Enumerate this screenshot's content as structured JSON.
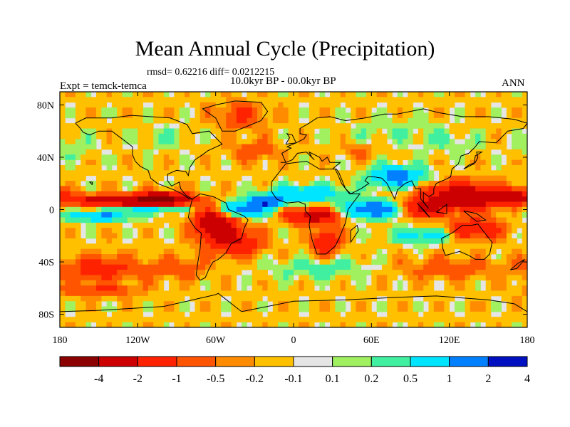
{
  "title": "Mean Annual Cycle (Precipitation)",
  "stats": "rmsd= 0.62216 diff= 0.0212215",
  "expt": "Expt = temck-temca",
  "period": "10.0kyr BP - 00.0kyr BP",
  "season": "ANN",
  "colors": {
    "land_gray": "#e5e5e5",
    "outline": "#000000",
    "bins": [
      "#8b0000",
      "#cc0000",
      "#ff2200",
      "#ff5500",
      "#ff8c00",
      "#ffc000",
      "#e5e5e5",
      "#a0f060",
      "#40f0a0",
      "#00e5ff",
      "#0080ff",
      "#0010c0"
    ]
  },
  "axes": {
    "x_ticks": [
      "180",
      "120W",
      "60W",
      "0",
      "60E",
      "120E",
      "180"
    ],
    "y_ticks": [
      "80N",
      "40N",
      "0",
      "40S",
      "80S"
    ]
  },
  "colorbar": {
    "labels": [
      "-4",
      "-2",
      "-1",
      "-0.5",
      "-0.2",
      "-0.1",
      "0.1",
      "0.2",
      "0.5",
      "1",
      "2",
      "4"
    ]
  },
  "field": {
    "lon_range": [
      -180,
      180
    ],
    "lat_range": [
      -90,
      90
    ],
    "features": [
      {
        "lon": -135,
        "lat": 7,
        "rx": 35,
        "ry": 4,
        "v": -2.5
      },
      {
        "lon": -100,
        "lat": 8,
        "rx": 20,
        "ry": 5,
        "v": -3
      },
      {
        "lon": -150,
        "lat": -5,
        "rx": 25,
        "ry": 4,
        "v": 1.5
      },
      {
        "lon": -110,
        "lat": 0,
        "rx": 25,
        "ry": 3,
        "v": 1.2
      },
      {
        "lon": -40,
        "lat": 0,
        "rx": 20,
        "ry": 6,
        "v": 2.0
      },
      {
        "lon": -60,
        "lat": -10,
        "rx": 15,
        "ry": 12,
        "v": -2.5
      },
      {
        "lon": -45,
        "lat": -25,
        "rx": 20,
        "ry": 10,
        "v": -1.5
      },
      {
        "lon": -20,
        "lat": 6,
        "rx": 12,
        "ry": 4,
        "v": 3
      },
      {
        "lon": 15,
        "lat": -5,
        "rx": 20,
        "ry": 6,
        "v": -2.0
      },
      {
        "lon": 25,
        "lat": -25,
        "rx": 10,
        "ry": 10,
        "v": -1.5
      },
      {
        "lon": 10,
        "lat": 12,
        "rx": 30,
        "ry": 6,
        "v": 1.5
      },
      {
        "lon": 60,
        "lat": 0,
        "rx": 20,
        "ry": 6,
        "v": 2.5
      },
      {
        "lon": 80,
        "lat": 25,
        "rx": 20,
        "ry": 8,
        "v": 2.0
      },
      {
        "lon": 130,
        "lat": 10,
        "rx": 30,
        "ry": 10,
        "v": -2.5
      },
      {
        "lon": 100,
        "lat": 0,
        "rx": 12,
        "ry": 6,
        "v": -2.0
      },
      {
        "lon": 165,
        "lat": 10,
        "rx": 20,
        "ry": 5,
        "v": -2.0
      },
      {
        "lon": 140,
        "lat": -15,
        "rx": 20,
        "ry": 8,
        "v": -1.5
      },
      {
        "lon": 100,
        "lat": -20,
        "rx": 25,
        "ry": 6,
        "v": 1.0
      },
      {
        "lon": -150,
        "lat": -45,
        "rx": 30,
        "ry": 10,
        "v": -1.0
      },
      {
        "lon": -90,
        "lat": -45,
        "rx": 25,
        "ry": 8,
        "v": -0.6
      },
      {
        "lon": 20,
        "lat": -45,
        "rx": 40,
        "ry": 8,
        "v": 0.5
      },
      {
        "lon": 120,
        "lat": -45,
        "rx": 40,
        "ry": 8,
        "v": -0.6
      },
      {
        "lon": -150,
        "lat": -62,
        "rx": 30,
        "ry": 5,
        "v": -0.8
      },
      {
        "lon": -40,
        "lat": 72,
        "rx": 20,
        "ry": 10,
        "v": -0.8
      },
      {
        "lon": 80,
        "lat": 60,
        "rx": 40,
        "ry": 10,
        "v": 0.3
      },
      {
        "lon": 120,
        "lat": 50,
        "rx": 25,
        "ry": 8,
        "v": 0.3
      },
      {
        "lon": -100,
        "lat": 55,
        "rx": 25,
        "ry": 10,
        "v": 0.3
      },
      {
        "lon": -30,
        "lat": 45,
        "rx": 20,
        "ry": 8,
        "v": -0.6
      },
      {
        "lon": 50,
        "lat": 45,
        "rx": 15,
        "ry": 6,
        "v": -0.4
      },
      {
        "lon": -170,
        "lat": 48,
        "rx": 20,
        "ry": 10,
        "v": 0.3
      }
    ],
    "coast": [
      [
        [
          -168,
          66
        ],
        [
          -160,
          70
        ],
        [
          -140,
          70
        ],
        [
          -125,
          72
        ],
        [
          -95,
          70
        ],
        [
          -82,
          65
        ],
        [
          -78,
          58
        ],
        [
          -65,
          60
        ],
        [
          -60,
          55
        ],
        [
          -55,
          50
        ],
        [
          -66,
          45
        ],
        [
          -70,
          42
        ],
        [
          -76,
          38
        ],
        [
          -80,
          32
        ],
        [
          -81,
          26
        ],
        [
          -83,
          29
        ],
        [
          -90,
          30
        ],
        [
          -97,
          27
        ],
        [
          -97,
          22
        ],
        [
          -94,
          18
        ],
        [
          -88,
          21
        ],
        [
          -87,
          16
        ],
        [
          -83,
          11
        ],
        [
          -78,
          8
        ],
        [
          -80,
          8
        ],
        [
          -86,
          12
        ],
        [
          -92,
          15
        ],
        [
          -105,
          20
        ],
        [
          -110,
          24
        ],
        [
          -112,
          30
        ],
        [
          -118,
          33
        ],
        [
          -122,
          37
        ],
        [
          -124,
          42
        ],
        [
          -124,
          48
        ],
        [
          -132,
          54
        ],
        [
          -140,
          60
        ],
        [
          -150,
          60
        ],
        [
          -157,
          57
        ],
        [
          -162,
          59
        ],
        [
          -165,
          63
        ],
        [
          -168,
          66
        ]
      ],
      [
        [
          -78,
          8
        ],
        [
          -72,
          12
        ],
        [
          -62,
          10
        ],
        [
          -52,
          5
        ],
        [
          -50,
          0
        ],
        [
          -45,
          -2
        ],
        [
          -38,
          -5
        ],
        [
          -35,
          -8
        ],
        [
          -38,
          -14
        ],
        [
          -40,
          -22
        ],
        [
          -48,
          -26
        ],
        [
          -52,
          -33
        ],
        [
          -58,
          -38
        ],
        [
          -62,
          -40
        ],
        [
          -65,
          -45
        ],
        [
          -68,
          -52
        ],
        [
          -72,
          -54
        ],
        [
          -75,
          -50
        ],
        [
          -74,
          -42
        ],
        [
          -72,
          -30
        ],
        [
          -71,
          -18
        ],
        [
          -76,
          -14
        ],
        [
          -81,
          -6
        ],
        [
          -80,
          0
        ],
        [
          -78,
          8
        ]
      ],
      [
        [
          -55,
          60
        ],
        [
          -45,
          60
        ],
        [
          -25,
          68
        ],
        [
          -20,
          75
        ],
        [
          -25,
          82
        ],
        [
          -45,
          83
        ],
        [
          -60,
          80
        ],
        [
          -70,
          77
        ],
        [
          -60,
          70
        ],
        [
          -55,
          60
        ]
      ],
      [
        [
          -10,
          36
        ],
        [
          -6,
          36
        ],
        [
          -9,
          43
        ],
        [
          -2,
          47
        ],
        [
          -5,
          48
        ],
        [
          2,
          51
        ],
        [
          8,
          54
        ],
        [
          10,
          57
        ],
        [
          5,
          58
        ],
        [
          5,
          62
        ],
        [
          12,
          66
        ],
        [
          18,
          70
        ],
        [
          28,
          71
        ],
        [
          40,
          68
        ],
        [
          55,
          70
        ],
        [
          70,
          73
        ],
        [
          80,
          73
        ],
        [
          100,
          77
        ],
        [
          112,
          74
        ],
        [
          130,
          71
        ],
        [
          150,
          71
        ],
        [
          170,
          69
        ],
        [
          180,
          66
        ],
        [
          177,
          62
        ],
        [
          165,
          60
        ],
        [
          160,
          55
        ],
        [
          156,
          51
        ],
        [
          143,
          52
        ],
        [
          140,
          48
        ],
        [
          135,
          43
        ],
        [
          129,
          41
        ],
        [
          127,
          35
        ],
        [
          122,
          31
        ],
        [
          121,
          25
        ],
        [
          117,
          23
        ],
        [
          110,
          20
        ],
        [
          108,
          16
        ],
        [
          108,
          12
        ],
        [
          104,
          10
        ],
        [
          100,
          13
        ],
        [
          100,
          6
        ],
        [
          104,
          1
        ],
        [
          98,
          8
        ],
        [
          98,
          16
        ],
        [
          94,
          16
        ],
        [
          91,
          22
        ],
        [
          86,
          20
        ],
        [
          80,
          15
        ],
        [
          78,
          8
        ],
        [
          72,
          20
        ],
        [
          68,
          24
        ],
        [
          62,
          25
        ],
        [
          57,
          25
        ],
        [
          55,
          22
        ],
        [
          58,
          20
        ],
        [
          52,
          16
        ],
        [
          44,
          12
        ],
        [
          40,
          16
        ],
        [
          35,
          28
        ],
        [
          33,
          31
        ],
        [
          30,
          31
        ],
        [
          36,
          36
        ],
        [
          28,
          36
        ],
        [
          26,
          40
        ],
        [
          22,
          37
        ],
        [
          20,
          40
        ],
        [
          12,
          44
        ],
        [
          14,
          40
        ],
        [
          16,
          38
        ],
        [
          10,
          44
        ],
        [
          3,
          43
        ],
        [
          -1,
          38
        ],
        [
          -6,
          36
        ],
        [
          -10,
          36
        ]
      ],
      [
        [
          -17,
          21
        ],
        [
          -10,
          30
        ],
        [
          -6,
          35
        ],
        [
          10,
          37
        ],
        [
          20,
          31
        ],
        [
          32,
          31
        ],
        [
          34,
          27
        ],
        [
          37,
          20
        ],
        [
          43,
          12
        ],
        [
          51,
          12
        ],
        [
          42,
          0
        ],
        [
          40,
          -10
        ],
        [
          35,
          -22
        ],
        [
          32,
          -28
        ],
        [
          25,
          -34
        ],
        [
          18,
          -34
        ],
        [
          14,
          -22
        ],
        [
          12,
          -12
        ],
        [
          13,
          -5
        ],
        [
          9,
          -1
        ],
        [
          9,
          4
        ],
        [
          4,
          6
        ],
        [
          -5,
          5
        ],
        [
          -13,
          8
        ],
        [
          -17,
          14
        ],
        [
          -17,
          21
        ]
      ],
      [
        [
          114,
          -22
        ],
        [
          122,
          -18
        ],
        [
          130,
          -12
        ],
        [
          137,
          -12
        ],
        [
          142,
          -11
        ],
        [
          145,
          -15
        ],
        [
          153,
          -25
        ],
        [
          151,
          -34
        ],
        [
          147,
          -38
        ],
        [
          140,
          -38
        ],
        [
          135,
          -35
        ],
        [
          128,
          -32
        ],
        [
          117,
          -35
        ],
        [
          115,
          -30
        ],
        [
          114,
          -22
        ]
      ],
      [
        [
          -180,
          -78
        ],
        [
          -150,
          -77
        ],
        [
          -100,
          -74
        ],
        [
          -60,
          -65
        ],
        [
          -58,
          -64
        ],
        [
          -40,
          -78
        ],
        [
          0,
          -70
        ],
        [
          40,
          -69
        ],
        [
          80,
          -67
        ],
        [
          110,
          -66
        ],
        [
          150,
          -69
        ],
        [
          170,
          -72
        ],
        [
          180,
          -78
        ]
      ],
      [
        [
          131,
          31
        ],
        [
          135,
          34
        ],
        [
          140,
          36
        ],
        [
          142,
          40
        ],
        [
          141,
          44
        ],
        [
          145,
          44
        ],
        [
          140,
          41
        ],
        [
          139,
          35
        ],
        [
          131,
          31
        ]
      ],
      [
        [
          95,
          5
        ],
        [
          100,
          0
        ],
        [
          105,
          -6
        ],
        [
          103,
          -4
        ],
        [
          97,
          3
        ],
        [
          95,
          5
        ]
      ],
      [
        [
          131,
          -1
        ],
        [
          141,
          -3
        ],
        [
          148,
          -8
        ],
        [
          141,
          -9
        ],
        [
          131,
          -1
        ]
      ],
      [
        [
          -6,
          50
        ],
        [
          2,
          51
        ],
        [
          -1,
          57
        ],
        [
          -5,
          58
        ],
        [
          -3,
          55
        ],
        [
          -6,
          50
        ]
      ],
      [
        [
          44,
          -25
        ],
        [
          50,
          -16
        ],
        [
          49,
          -12
        ],
        [
          44,
          -16
        ],
        [
          44,
          -25
        ]
      ],
      [
        [
          110,
          -2
        ],
        [
          118,
          4
        ],
        [
          118,
          -3
        ],
        [
          110,
          -2
        ]
      ],
      [
        [
          167,
          -46
        ],
        [
          173,
          -41
        ],
        [
          178,
          -38
        ],
        [
          172,
          -45
        ],
        [
          167,
          -46
        ]
      ],
      [
        [
          -155,
          19
        ],
        [
          -155,
          21
        ],
        [
          -157,
          21
        ],
        [
          -155,
          19
        ]
      ]
    ]
  }
}
